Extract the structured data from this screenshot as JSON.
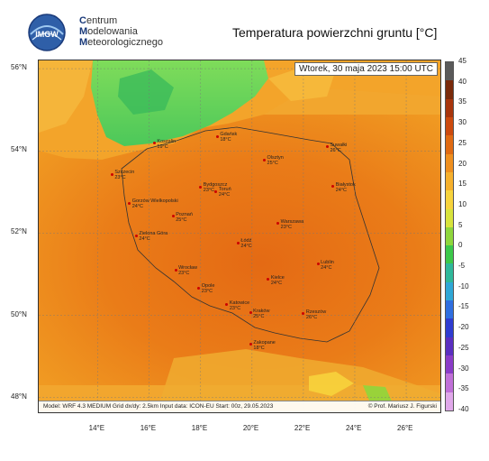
{
  "header": {
    "logo_text": "IMGW",
    "org_lines": [
      {
        "initial": "C",
        "rest": "entrum"
      },
      {
        "initial": "M",
        "rest": "odelowania"
      },
      {
        "initial": "M",
        "rest": "eteorologicznego"
      }
    ],
    "title": "Temperatura powierzchni gruntu [°C]"
  },
  "map": {
    "datetime": "Wtorek, 30 maja 2023 15:00 UTC",
    "footer_left": "Model: WRF 4.3 MEDIUM  Grid dx/dy: 2.5km  Input data: ICON-EU  Start: 00z, 29.05.2023",
    "footer_right": "© Prof. Mariusz J. Figurski",
    "extent": {
      "lon_min": 11.7,
      "lon_max": 27.4,
      "lat_min": 47.6,
      "lat_max": 56.2
    },
    "lat_labels": [
      "56°N",
      "54°N",
      "52°N",
      "50°N",
      "48°N"
    ],
    "lat_values": [
      56,
      54,
      52,
      50,
      48
    ],
    "lon_labels": [
      "14°E",
      "16°E",
      "18°E",
      "20°E",
      "22°E",
      "24°E",
      "26°E"
    ],
    "lon_values": [
      14,
      16,
      18,
      20,
      22,
      24,
      26
    ],
    "cities": [
      {
        "name": "Koszalin",
        "temp": "19°C",
        "lon": 16.2,
        "lat": 54.19
      },
      {
        "name": "Gdańsk",
        "temp": "18°C",
        "lon": 18.65,
        "lat": 54.35
      },
      {
        "name": "Olsztyn",
        "temp": "25°C",
        "lon": 20.48,
        "lat": 53.78
      },
      {
        "name": "Suwałki",
        "temp": "26°C",
        "lon": 22.93,
        "lat": 54.1
      },
      {
        "name": "Szczecin",
        "temp": "23°C",
        "lon": 14.55,
        "lat": 53.43
      },
      {
        "name": "Bydgoszcz",
        "temp": "23°C",
        "lon": 18.0,
        "lat": 53.12
      },
      {
        "name": "Toruń",
        "temp": "24°C",
        "lon": 18.6,
        "lat": 53.01
      },
      {
        "name": "Białystok",
        "temp": "24°C",
        "lon": 23.15,
        "lat": 53.13
      },
      {
        "name": "Gorzów Wielkopolski",
        "temp": "24°C",
        "lon": 15.23,
        "lat": 52.73
      },
      {
        "name": "Poznań",
        "temp": "25°C",
        "lon": 16.93,
        "lat": 52.41
      },
      {
        "name": "Warszawa",
        "temp": "23°C",
        "lon": 21.01,
        "lat": 52.23
      },
      {
        "name": "Zielona Góra",
        "temp": "24°C",
        "lon": 15.5,
        "lat": 51.94
      },
      {
        "name": "Łódź",
        "temp": "24°C",
        "lon": 19.46,
        "lat": 51.76
      },
      {
        "name": "Lublin",
        "temp": "24°C",
        "lon": 22.57,
        "lat": 51.25
      },
      {
        "name": "Wrocław",
        "temp": "23°C",
        "lon": 17.03,
        "lat": 51.11
      },
      {
        "name": "Kielce",
        "temp": "24°C",
        "lon": 20.63,
        "lat": 50.87
      },
      {
        "name": "Opole",
        "temp": "23°C",
        "lon": 17.93,
        "lat": 50.67
      },
      {
        "name": "Katowice",
        "temp": "23°C",
        "lon": 19.02,
        "lat": 50.26
      },
      {
        "name": "Kraków",
        "temp": "25°C",
        "lon": 19.94,
        "lat": 50.06
      },
      {
        "name": "Rzeszów",
        "temp": "26°C",
        "lon": 22.0,
        "lat": 50.04
      },
      {
        "name": "Zakopane",
        "temp": "18°C",
        "lon": 19.95,
        "lat": 49.3
      }
    ]
  },
  "colorbar": {
    "unit": "°C",
    "labels": [
      "45",
      "40",
      "35",
      "30",
      "25",
      "20",
      "15",
      "10",
      "5",
      "0",
      "-5",
      "-10",
      "-15",
      "-20",
      "-25",
      "-30",
      "-35",
      "-40"
    ],
    "colors": [
      "#5a5a5a",
      "#7a2a0a",
      "#a8350c",
      "#cc4a0e",
      "#e06a12",
      "#ef8f1e",
      "#f6b02c",
      "#f7d33c",
      "#d8e33c",
      "#8fd63c",
      "#3cc84a",
      "#2fb89a",
      "#2fa7d6",
      "#2f6ee0",
      "#2f3cd0",
      "#5a2fc0",
      "#8a3cc8",
      "#c070d8",
      "#e0a8ea"
    ]
  }
}
